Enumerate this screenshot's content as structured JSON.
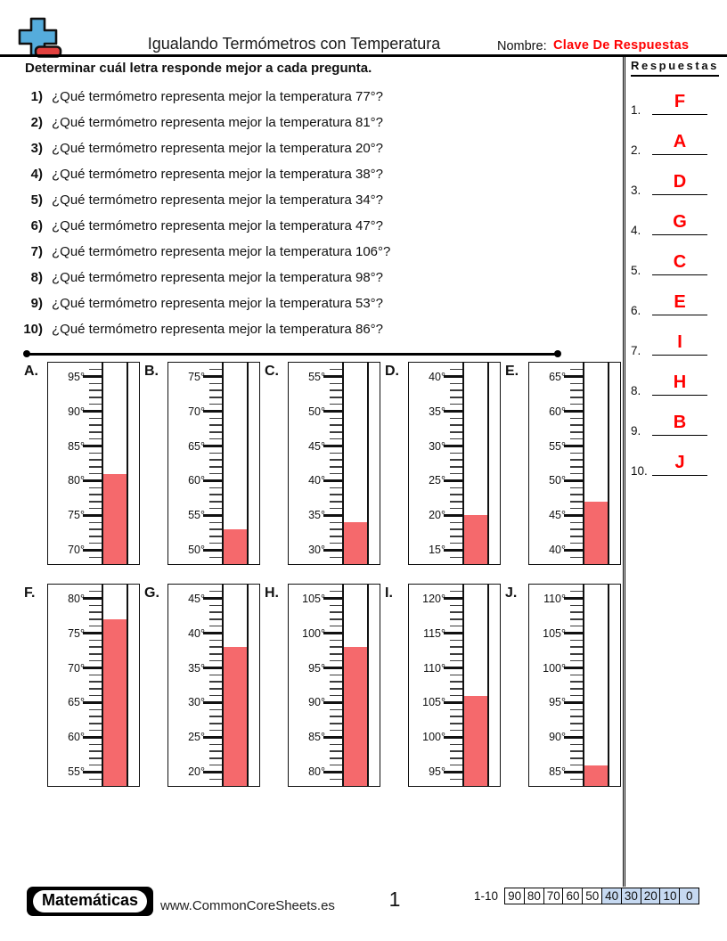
{
  "colors": {
    "accent_red": "#FF0000",
    "thermo_fill": "#F5696C",
    "score_blue": "#C6D9F1",
    "logo_blue": "#55ACDC",
    "logo_red": "#E2403E"
  },
  "header": {
    "title": "Igualando Termómetros con Temperatura",
    "name_label": "Nombre:",
    "name_value": "Clave De Respuestas"
  },
  "instruction": "Determinar cuál letra responde mejor a cada pregunta.",
  "questions": [
    {
      "num": "1)",
      "text": "¿Qué termómetro representa mejor la temperatura 77°?"
    },
    {
      "num": "2)",
      "text": "¿Qué termómetro representa mejor la temperatura 81°?"
    },
    {
      "num": "3)",
      "text": "¿Qué termómetro representa mejor la temperatura 20°?"
    },
    {
      "num": "4)",
      "text": "¿Qué termómetro representa mejor la temperatura 38°?"
    },
    {
      "num": "5)",
      "text": "¿Qué termómetro representa mejor la temperatura 34°?"
    },
    {
      "num": "6)",
      "text": "¿Qué termómetro representa mejor la temperatura 47°?"
    },
    {
      "num": "7)",
      "text": "¿Qué termómetro representa mejor la temperatura 106°?"
    },
    {
      "num": "8)",
      "text": "¿Qué termómetro representa mejor la temperatura 98°?"
    },
    {
      "num": "9)",
      "text": "¿Qué termómetro representa mejor la temperatura 53°?"
    },
    {
      "num": "10)",
      "text": "¿Qué termómetro representa mejor la temperatura 86°?"
    }
  ],
  "answers_panel": {
    "title": "Respuestas",
    "answers": [
      {
        "num": "1.",
        "letter": "F"
      },
      {
        "num": "2.",
        "letter": "A"
      },
      {
        "num": "3.",
        "letter": "D"
      },
      {
        "num": "4.",
        "letter": "G"
      },
      {
        "num": "5.",
        "letter": "C"
      },
      {
        "num": "6.",
        "letter": "E"
      },
      {
        "num": "7.",
        "letter": "I"
      },
      {
        "num": "8.",
        "letter": "H"
      },
      {
        "num": "9.",
        "letter": "B"
      },
      {
        "num": "10.",
        "letter": "J"
      }
    ]
  },
  "thermometers": {
    "rows": [
      [
        {
          "letter": "A.",
          "labels": [
            "95°",
            "90°",
            "85°",
            "80°",
            "75°",
            "70°"
          ],
          "max_label": 95,
          "min_label": 70,
          "value": 81
        },
        {
          "letter": "B.",
          "labels": [
            "75°",
            "70°",
            "65°",
            "60°",
            "55°",
            "50°"
          ],
          "max_label": 75,
          "min_label": 50,
          "value": 53
        },
        {
          "letter": "C.",
          "labels": [
            "55°",
            "50°",
            "45°",
            "40°",
            "35°",
            "30°"
          ],
          "max_label": 55,
          "min_label": 30,
          "value": 34
        },
        {
          "letter": "D.",
          "labels": [
            "40°",
            "35°",
            "30°",
            "25°",
            "20°",
            "15°"
          ],
          "max_label": 40,
          "min_label": 15,
          "value": 20
        },
        {
          "letter": "E.",
          "labels": [
            "65°",
            "60°",
            "55°",
            "50°",
            "45°",
            "40°"
          ],
          "max_label": 65,
          "min_label": 40,
          "value": 47
        }
      ],
      [
        {
          "letter": "F.",
          "labels": [
            "80°",
            "75°",
            "70°",
            "65°",
            "60°",
            "55°"
          ],
          "max_label": 80,
          "min_label": 55,
          "value": 77
        },
        {
          "letter": "G.",
          "labels": [
            "45°",
            "40°",
            "35°",
            "30°",
            "25°",
            "20°"
          ],
          "max_label": 45,
          "min_label": 20,
          "value": 38
        },
        {
          "letter": "H.",
          "labels": [
            "105°",
            "100°",
            "95°",
            "90°",
            "85°",
            "80°"
          ],
          "max_label": 105,
          "min_label": 80,
          "value": 98
        },
        {
          "letter": "I.",
          "labels": [
            "120°",
            "115°",
            "110°",
            "105°",
            "100°",
            "95°"
          ],
          "max_label": 120,
          "min_label": 95,
          "value": 106
        },
        {
          "letter": "J.",
          "labels": [
            "110°",
            "105°",
            "100°",
            "95°",
            "90°",
            "85°"
          ],
          "max_label": 110,
          "min_label": 85,
          "value": 86
        }
      ]
    ]
  },
  "footer": {
    "brand": "Matemáticas",
    "site": "www.CommonCoreSheets.es",
    "page": "1",
    "score_label": "1-10",
    "score_cells": [
      {
        "label": "90",
        "highlight": false
      },
      {
        "label": "80",
        "highlight": false
      },
      {
        "label": "70",
        "highlight": false
      },
      {
        "label": "60",
        "highlight": false
      },
      {
        "label": "50",
        "highlight": false
      },
      {
        "label": "40",
        "highlight": true
      },
      {
        "label": "30",
        "highlight": true
      },
      {
        "label": "20",
        "highlight": true
      },
      {
        "label": "10",
        "highlight": true
      },
      {
        "label": "0",
        "highlight": true
      }
    ]
  }
}
